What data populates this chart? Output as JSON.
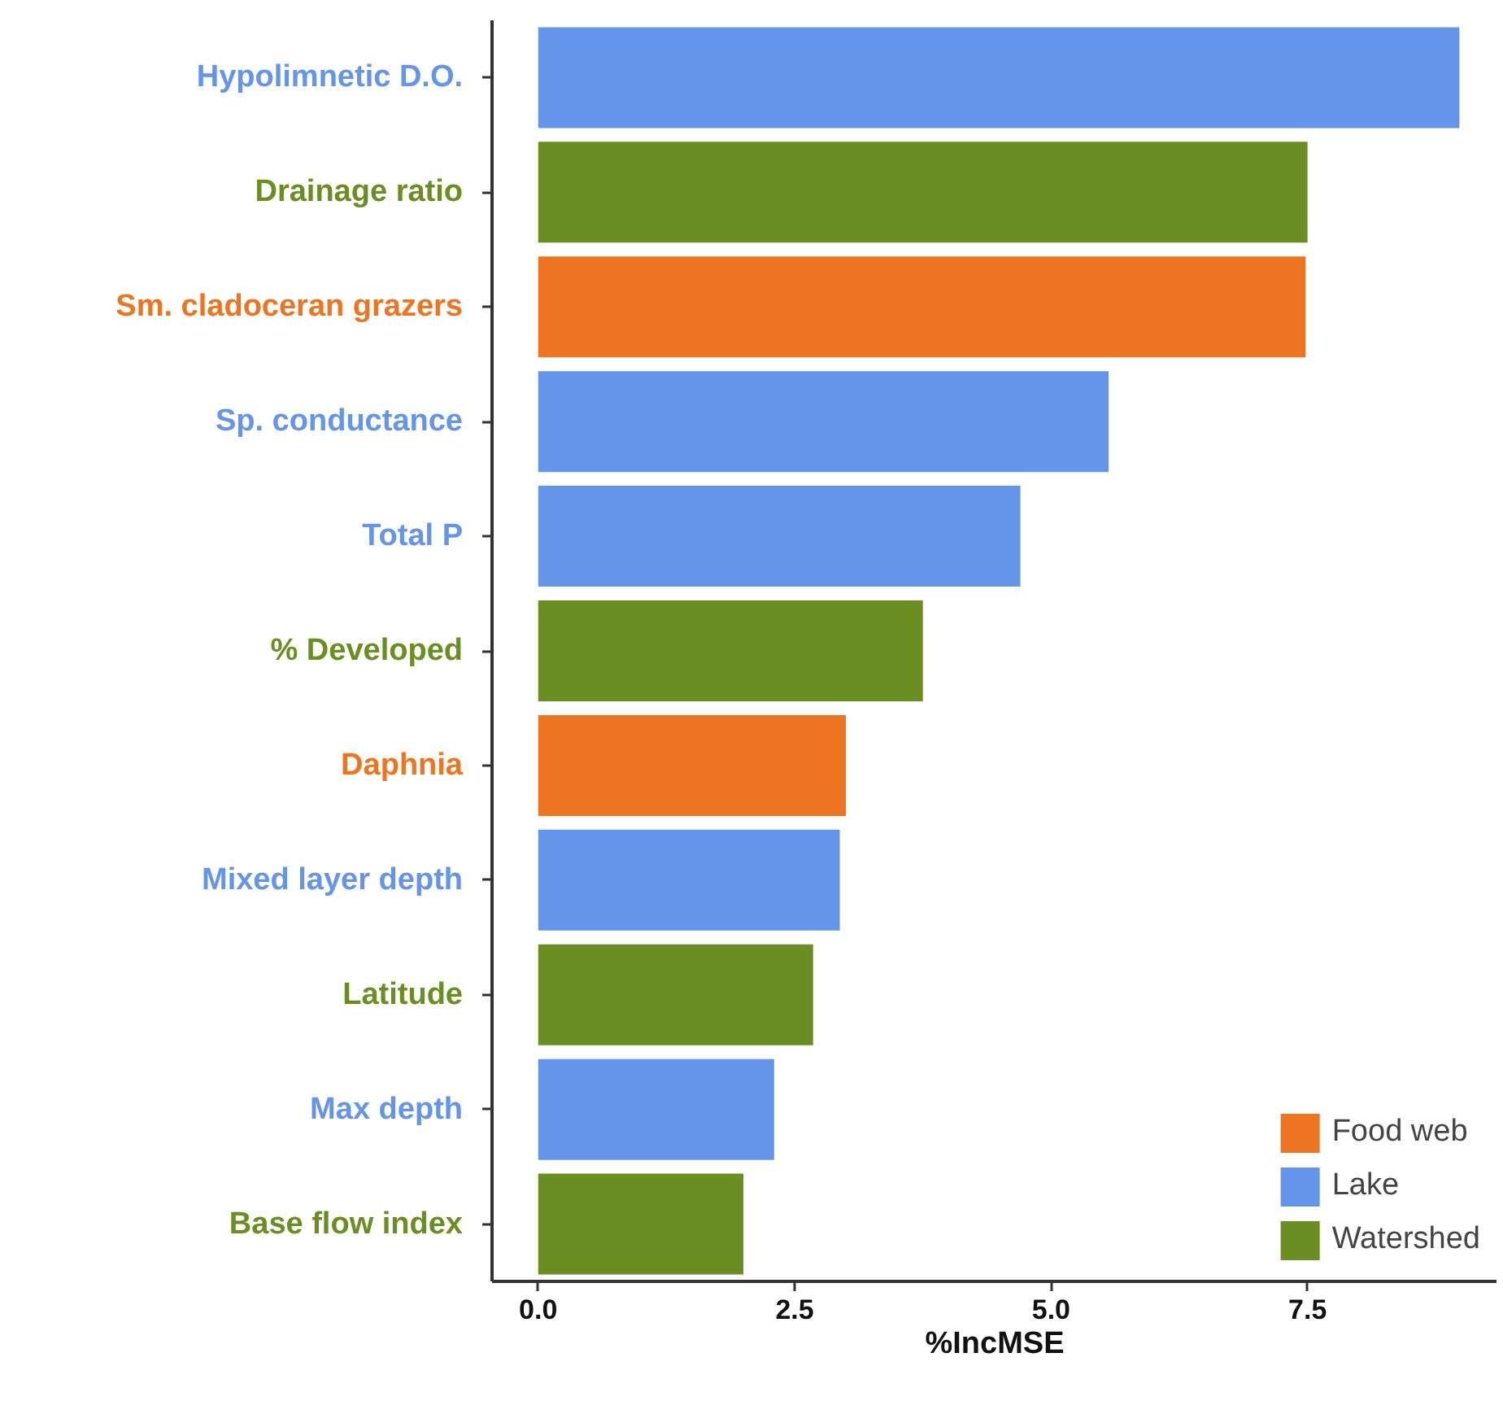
{
  "chart_data": {
    "type": "bar",
    "orientation": "horizontal",
    "xlabel": "%IncMSE",
    "categories": [
      "Hypolimnetic D.O.",
      "Drainage ratio",
      "Sm. cladoceran grazers",
      "Sp. conductance",
      "Total P",
      "% Developed",
      "Daphnia",
      "Mixed layer depth",
      "Latitude",
      "Max depth",
      "Base flow index"
    ],
    "series": [
      {
        "name": "Food web",
        "color": "#ed7521",
        "values": [
          null,
          null,
          7.48,
          null,
          null,
          null,
          3.0,
          null,
          null,
          null,
          null
        ]
      },
      {
        "name": "Lake",
        "color": "#6495ea",
        "values": [
          8.98,
          null,
          null,
          5.56,
          4.7,
          null,
          null,
          2.94,
          null,
          2.3,
          null
        ]
      },
      {
        "name": "Watershed",
        "color": "#6b8e23",
        "values": [
          null,
          7.5,
          null,
          null,
          null,
          3.75,
          null,
          null,
          2.68,
          null,
          2.0
        ]
      }
    ],
    "xlim": [
      -0.45,
      9.35
    ],
    "xticks": [
      {
        "value": 0,
        "label": "0.0"
      },
      {
        "value": 2.5,
        "label": "2.5"
      },
      {
        "value": 5,
        "label": "5.0"
      },
      {
        "value": 7.5,
        "label": "7.5"
      }
    ],
    "grid": false,
    "legend": "bottom right"
  }
}
